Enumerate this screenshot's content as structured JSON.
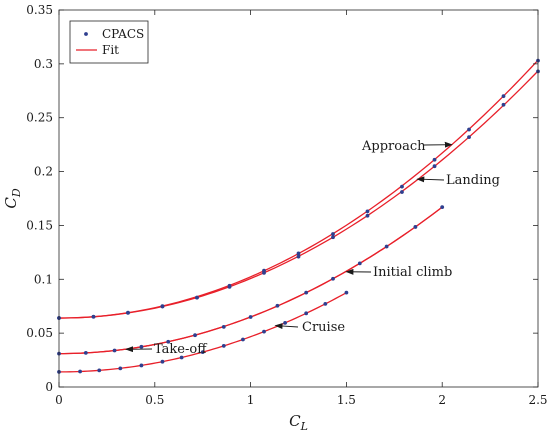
{
  "chart_data": {
    "type": "line",
    "xlabel": "C_L",
    "ylabel": "C_D",
    "xlim": [
      0,
      2.5
    ],
    "ylim": [
      0,
      0.35
    ],
    "xticks": [
      0,
      0.5,
      1,
      1.5,
      2,
      2.5
    ],
    "yticks": [
      0,
      0.05,
      0.1,
      0.15,
      0.2,
      0.25,
      0.3,
      0.35
    ],
    "xtick_labels": [
      "0",
      "0.5",
      "1",
      "1.5",
      "2",
      "2.5"
    ],
    "ytick_labels": [
      "0",
      "0.05",
      "0.1",
      "0.15",
      "0.2",
      "0.25",
      "0.3",
      "0.35"
    ],
    "grid": false,
    "legend": {
      "placement": "top-left",
      "entries": [
        {
          "label": "CPACS",
          "marker": "dot",
          "color": "#2f3f8f"
        },
        {
          "label": "Fit",
          "marker": "line",
          "color": "#e8202a"
        }
      ]
    },
    "colors": {
      "points": "#2f3f8f",
      "fit": "#e8202a"
    },
    "series": [
      {
        "label": "Approach",
        "fit": {
          "cd0": 0.064,
          "k": 0.0383,
          "xmax": 2.5
        },
        "points": [
          [
            0,
            0.064
          ],
          [
            0.18,
            0.0652
          ],
          [
            0.36,
            0.069
          ],
          [
            0.54,
            0.075
          ],
          [
            0.72,
            0.083
          ],
          [
            0.89,
            0.094
          ],
          [
            1.07,
            0.108
          ],
          [
            1.25,
            0.124
          ],
          [
            1.43,
            0.142
          ],
          [
            1.61,
            0.163
          ],
          [
            1.79,
            0.186
          ],
          [
            1.96,
            0.211
          ],
          [
            2.14,
            0.239
          ],
          [
            2.32,
            0.27
          ],
          [
            2.5,
            0.303
          ]
        ]
      },
      {
        "label": "Landing",
        "fit": {
          "cd0": 0.064,
          "k": 0.0367,
          "xmax": 2.5
        },
        "points": [
          [
            0,
            0.064
          ],
          [
            0.18,
            0.0652
          ],
          [
            0.36,
            0.0688
          ],
          [
            0.54,
            0.0747
          ],
          [
            0.72,
            0.083
          ],
          [
            0.89,
            0.093
          ],
          [
            1.07,
            0.106
          ],
          [
            1.25,
            0.121
          ],
          [
            1.43,
            0.139
          ],
          [
            1.61,
            0.159
          ],
          [
            1.79,
            0.181
          ],
          [
            1.96,
            0.205
          ],
          [
            2.14,
            0.232
          ],
          [
            2.32,
            0.262
          ],
          [
            2.5,
            0.293
          ]
        ]
      },
      {
        "label": "Initial climb",
        "fit": {
          "cd0": 0.031,
          "k": 0.034,
          "xmax": 2.0
        },
        "points": [
          [
            0,
            0.031
          ],
          [
            0.14,
            0.0317
          ],
          [
            0.29,
            0.0339
          ],
          [
            0.43,
            0.0373
          ],
          [
            0.57,
            0.042
          ],
          [
            0.71,
            0.0481
          ],
          [
            0.86,
            0.0558
          ],
          [
            1.0,
            0.065
          ],
          [
            1.14,
            0.0754
          ],
          [
            1.29,
            0.0876
          ],
          [
            1.43,
            0.1005
          ],
          [
            1.57,
            0.1148
          ],
          [
            1.71,
            0.1304
          ],
          [
            1.86,
            0.1486
          ],
          [
            2.0,
            0.167
          ]
        ]
      },
      {
        "label": "Take-off",
        "fit": {
          "cd0": 0.031,
          "k": 0.034,
          "xmax": 2.0
        },
        "points": []
      },
      {
        "label": "Cruise",
        "fit": {
          "cd0": 0.014,
          "k": 0.0327,
          "xmax": 1.5
        },
        "points": [
          [
            0,
            0.014
          ],
          [
            0.11,
            0.0144
          ],
          [
            0.21,
            0.0154
          ],
          [
            0.32,
            0.0173
          ],
          [
            0.43,
            0.02
          ],
          [
            0.54,
            0.0235
          ],
          [
            0.64,
            0.0274
          ],
          [
            0.75,
            0.0324
          ],
          [
            0.86,
            0.0382
          ],
          [
            0.96,
            0.0441
          ],
          [
            1.07,
            0.0514
          ],
          [
            1.18,
            0.0595
          ],
          [
            1.29,
            0.0684
          ],
          [
            1.39,
            0.0772
          ],
          [
            1.5,
            0.0876
          ]
        ]
      }
    ],
    "annotations": [
      {
        "text": "Approach",
        "target": [
          2.05,
          0.225
        ]
      },
      {
        "text": "Landing",
        "target": [
          1.87,
          0.193
        ]
      },
      {
        "text": "Initial climb",
        "target": [
          1.5,
          0.107
        ]
      },
      {
        "text": "Take-off",
        "target": [
          0.35,
          0.035
        ]
      },
      {
        "text": "Cruise",
        "target": [
          1.13,
          0.057
        ]
      }
    ]
  }
}
